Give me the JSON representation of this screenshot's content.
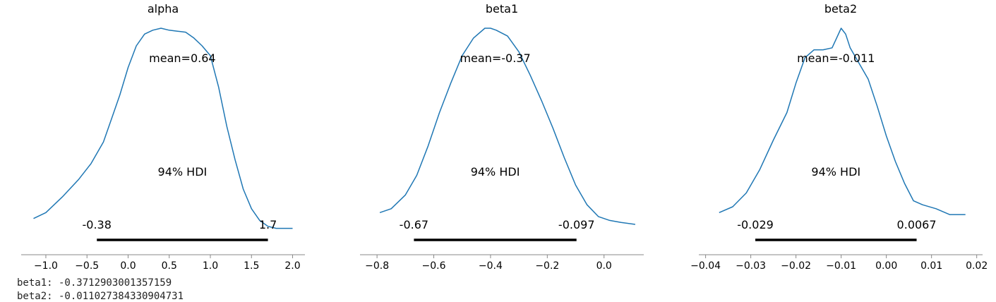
{
  "chart_data": [
    {
      "type": "line",
      "title": "alpha",
      "mean_label": "mean=0.64",
      "hdi_label": "94% HDI",
      "hdi": [
        -0.38,
        1.7
      ],
      "hdi_labels": [
        "-0.38",
        "1.7"
      ],
      "xlim": [
        -1.3,
        2.15
      ],
      "ylim": [
        0,
        1
      ],
      "xticks": [
        -1.0,
        -0.5,
        0.0,
        0.5,
        1.0,
        1.5,
        2.0
      ],
      "xtick_labels": [
        "−1.0",
        "−0.5",
        "0.0",
        "0.5",
        "1.0",
        "1.5",
        "2.0"
      ],
      "x": [
        -1.15,
        -1.0,
        -0.8,
        -0.6,
        -0.45,
        -0.3,
        -0.2,
        -0.1,
        0.0,
        0.1,
        0.2,
        0.3,
        0.4,
        0.5,
        0.6,
        0.7,
        0.8,
        0.9,
        1.0,
        1.1,
        1.2,
        1.3,
        1.4,
        1.5,
        1.6,
        1.7,
        1.8,
        1.9,
        2.0
      ],
      "y": [
        0.03,
        0.06,
        0.14,
        0.23,
        0.31,
        0.42,
        0.54,
        0.66,
        0.8,
        0.91,
        0.97,
        0.99,
        1.0,
        0.99,
        0.985,
        0.98,
        0.95,
        0.91,
        0.86,
        0.7,
        0.5,
        0.33,
        0.18,
        0.08,
        0.02,
        -0.01,
        -0.02,
        -0.02,
        -0.02
      ]
    },
    {
      "type": "line",
      "title": "beta1",
      "mean_label": "mean=-0.37",
      "hdi_label": "94% HDI",
      "hdi": [
        -0.67,
        -0.097
      ],
      "hdi_labels": [
        "-0.67",
        "-0.097"
      ],
      "xlim": [
        -0.86,
        0.14
      ],
      "ylim": [
        0,
        1
      ],
      "xticks": [
        -0.8,
        -0.6,
        -0.4,
        -0.2,
        0.0
      ],
      "xtick_labels": [
        "−0.8",
        "−0.6",
        "−0.4",
        "−0.2",
        "0.0"
      ],
      "x": [
        -0.79,
        -0.75,
        -0.7,
        -0.66,
        -0.62,
        -0.58,
        -0.54,
        -0.5,
        -0.46,
        -0.42,
        -0.4,
        -0.38,
        -0.34,
        -0.3,
        -0.26,
        -0.22,
        -0.18,
        -0.14,
        -0.1,
        -0.06,
        -0.02,
        0.02,
        0.06,
        0.11
      ],
      "y": [
        0.06,
        0.08,
        0.15,
        0.25,
        0.4,
        0.57,
        0.72,
        0.86,
        0.95,
        1.0,
        1.0,
        0.99,
        0.96,
        0.88,
        0.76,
        0.63,
        0.49,
        0.34,
        0.2,
        0.1,
        0.04,
        0.02,
        0.01,
        0.0
      ]
    },
    {
      "type": "line",
      "title": "beta2",
      "mean_label": "mean=-0.011",
      "hdi_label": "94% HDI",
      "hdi": [
        -0.029,
        0.0067
      ],
      "hdi_labels": [
        "-0.029",
        "0.0067"
      ],
      "xlim": [
        -0.0415,
        0.0213
      ],
      "ylim": [
        0,
        1
      ],
      "xticks": [
        -0.04,
        -0.03,
        -0.02,
        -0.01,
        0.0,
        0.01,
        0.02
      ],
      "xtick_labels": [
        "−0.04",
        "−0.03",
        "−0.02",
        "−0.01",
        "0.00",
        "0.01",
        "0.02"
      ],
      "x": [
        -0.037,
        -0.034,
        -0.031,
        -0.028,
        -0.025,
        -0.022,
        -0.02,
        -0.018,
        -0.016,
        -0.014,
        -0.012,
        -0.011,
        -0.01,
        -0.009,
        -0.008,
        -0.006,
        -0.004,
        -0.002,
        0.0,
        0.002,
        0.004,
        0.006,
        0.008,
        0.011,
        0.014,
        0.0175
      ],
      "y": [
        0.06,
        0.09,
        0.16,
        0.28,
        0.43,
        0.57,
        0.72,
        0.85,
        0.89,
        0.89,
        0.9,
        0.95,
        1.0,
        0.97,
        0.9,
        0.82,
        0.74,
        0.6,
        0.45,
        0.32,
        0.21,
        0.12,
        0.1,
        0.08,
        0.05,
        0.05
      ]
    }
  ],
  "console": {
    "line1": "beta1: -0.3712903001357159",
    "line2": "beta2: -0.011027384330904731"
  },
  "colors": {
    "curve": "#1f77b4",
    "hdi": "#000000",
    "axis": "#888888",
    "text": "#000000"
  }
}
